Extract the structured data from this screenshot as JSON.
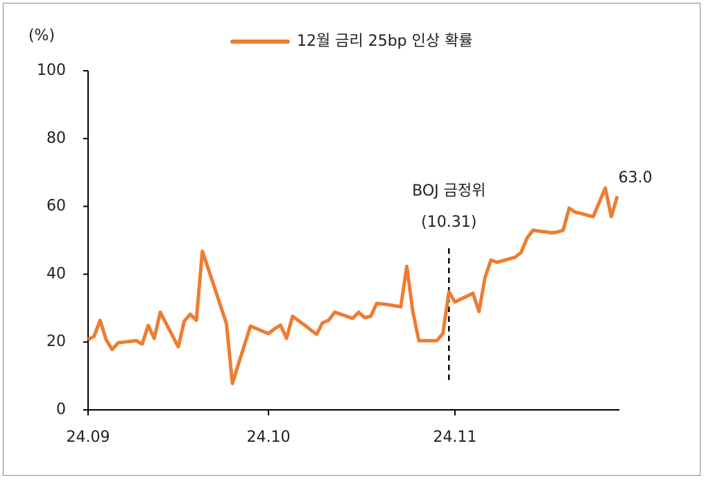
{
  "chart_data": {
    "type": "line",
    "y_label": "(%)",
    "categories": [
      "24.09",
      null,
      null,
      null,
      null,
      null,
      null,
      null,
      null,
      null,
      null,
      null,
      null,
      null,
      null,
      null,
      null,
      null,
      null,
      null,
      null,
      null,
      null,
      null,
      null,
      null,
      null,
      null,
      null,
      null,
      "24.10",
      null,
      null,
      null,
      null,
      null,
      null,
      null,
      null,
      null,
      null,
      null,
      null,
      null,
      null,
      null,
      null,
      null,
      null,
      null,
      null,
      null,
      null,
      null,
      null,
      null,
      null,
      null,
      null,
      null,
      null,
      "24.11",
      null,
      null,
      null,
      null,
      null,
      null,
      null,
      null,
      null,
      null,
      null,
      null,
      null,
      null,
      null,
      null,
      null,
      null,
      null,
      null,
      null,
      null,
      null,
      null,
      null,
      null,
      null
    ],
    "series": [
      {
        "name": "12월 금리 25bp 인상 확률",
        "color": "#ed7d31",
        "values": [
          20.7,
          21.7,
          26.4,
          20.7,
          17.8,
          19.8,
          20,
          20.2,
          20.4,
          19.4,
          24.9,
          21.1,
          28.8,
          25.4,
          22,
          18.6,
          26.2,
          28.2,
          26.4,
          46.8,
          41.5,
          36.2,
          30.8,
          25.5,
          7.8,
          13.5,
          19.1,
          24.7,
          24,
          23.2,
          22.5,
          23.9,
          25,
          21.1,
          27.6,
          26.3,
          25,
          23.6,
          22.3,
          25.7,
          26.4,
          28.8,
          28.2,
          27.6,
          27,
          28.8,
          27.2,
          27.6,
          31.4,
          31.2,
          31,
          30.7,
          30.4,
          42.3,
          29,
          20.4,
          20.4,
          20.4,
          20.4,
          22.5,
          34.8,
          31.8,
          32.7,
          33.5,
          34.4,
          29,
          39,
          44.2,
          43.5,
          44,
          44.5,
          45,
          46.4,
          50.7,
          53,
          52.7,
          52.5,
          52.2,
          52.4,
          53,
          59.5,
          58.3,
          57.9,
          57.4,
          57,
          61.2,
          65.4,
          57,
          63.0
        ],
        "value_labels": [
          null,
          null,
          null,
          null,
          null,
          null,
          null,
          null,
          null,
          null,
          null,
          null,
          null,
          null,
          null,
          null,
          null,
          null,
          null,
          null,
          null,
          null,
          null,
          null,
          null,
          null,
          null,
          null,
          null,
          null,
          null,
          null,
          null,
          null,
          null,
          null,
          null,
          null,
          null,
          null,
          null,
          null,
          null,
          null,
          null,
          null,
          null,
          null,
          null,
          null,
          null,
          null,
          null,
          null,
          null,
          null,
          null,
          null,
          null,
          null,
          null,
          null,
          null,
          null,
          null,
          null,
          null,
          null,
          null,
          null,
          null,
          null,
          null,
          null,
          null,
          null,
          null,
          null,
          null,
          null,
          null,
          null,
          null,
          null,
          null,
          null,
          null,
          null,
          "63.0"
        ]
      }
    ],
    "annotation": {
      "lines": [
        "BOJ 금정위",
        "(10.31)"
      ],
      "index": 60
    },
    "ylim": [
      0,
      100
    ],
    "yticks": [
      0,
      20,
      40,
      60,
      80,
      100
    ],
    "legend": "top"
  }
}
